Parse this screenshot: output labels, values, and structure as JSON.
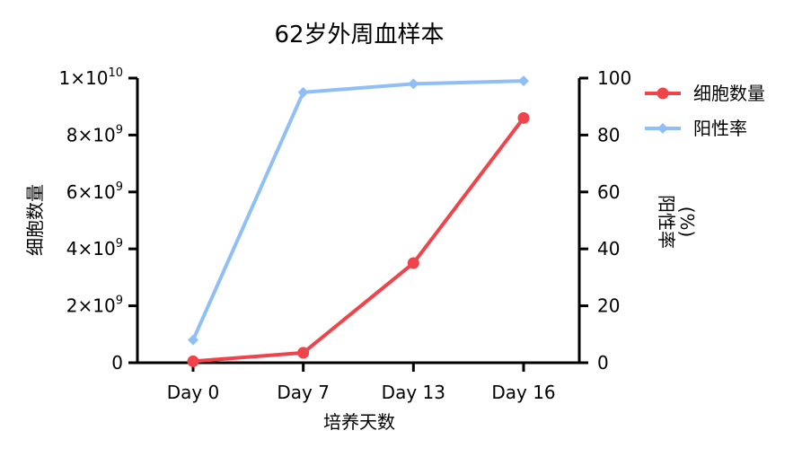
{
  "chart_data": {
    "type": "line",
    "title": "62岁外周血样本",
    "xlabel": "培养天数",
    "ylabel_left": "细胞数量",
    "ylabel_right": "阳性率",
    "ylabel_right_unit": "(%)",
    "categories": [
      "Day 0",
      "Day 7",
      "Day 13",
      "Day 16"
    ],
    "left_axis": {
      "ylim": [
        0,
        10000000000
      ],
      "ticks": [
        0,
        2000000000,
        4000000000,
        6000000000,
        8000000000,
        10000000000
      ],
      "tick_labels": [
        {
          "base": "0",
          "exp": ""
        },
        {
          "base": "2×10",
          "exp": "9"
        },
        {
          "base": "4×10",
          "exp": "9"
        },
        {
          "base": "6×10",
          "exp": "9"
        },
        {
          "base": "8×10",
          "exp": "9"
        },
        {
          "base": "1×10",
          "exp": "10"
        }
      ]
    },
    "right_axis": {
      "ylim": [
        0,
        100
      ],
      "ticks": [
        0,
        20,
        40,
        60,
        80,
        100
      ],
      "tick_labels": [
        "0",
        "20",
        "40",
        "60",
        "80",
        "100"
      ]
    },
    "series": [
      {
        "name": "细胞数量",
        "axis": "left",
        "color": "#f0434a",
        "marker": "circle",
        "values": [
          50000000,
          350000000,
          3500000000,
          8600000000
        ]
      },
      {
        "name": "阳性率",
        "axis": "right",
        "color": "#90bff7",
        "marker": "diamond",
        "values": [
          8,
          95,
          98,
          99
        ]
      }
    ],
    "legend": "top-right",
    "grid": false
  }
}
